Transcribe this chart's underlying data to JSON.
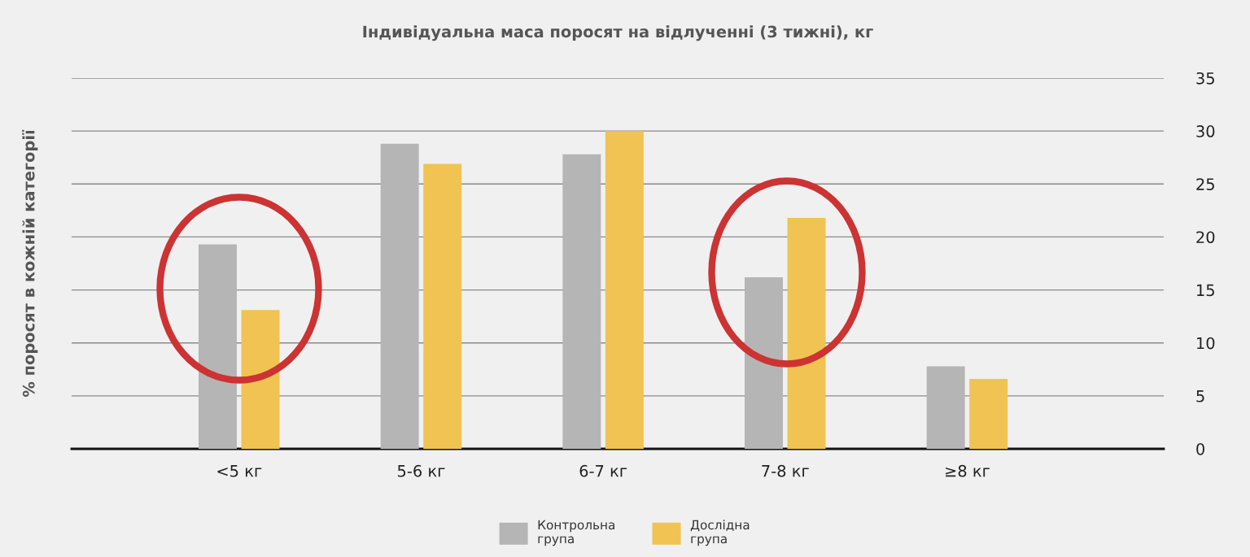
{
  "chart_data": {
    "type": "bar",
    "title": "Індивідуальна маса поросят на відлученні (3 тижні), кг",
    "ylabel": "% поросят в кожній категорії",
    "categories": [
      "<5 кг",
      "5-6 кг",
      "6-7 кг",
      "7-8 кг",
      "≥8 кг"
    ],
    "series": [
      {
        "name": "Контрольна\nгрупа",
        "color": "#b5b5b5",
        "values": [
          19.3,
          28.8,
          27.8,
          16.2,
          7.8
        ]
      },
      {
        "name": "Дослідна\nгрупа",
        "color": "#f0c352",
        "values": [
          13.1,
          26.9,
          30.0,
          21.8,
          6.6
        ]
      }
    ],
    "ylim": [
      0,
      35
    ],
    "yticks": [
      0,
      5,
      10,
      15,
      20,
      25,
      30,
      35
    ],
    "grid": "y",
    "legend": "bottom"
  }
}
